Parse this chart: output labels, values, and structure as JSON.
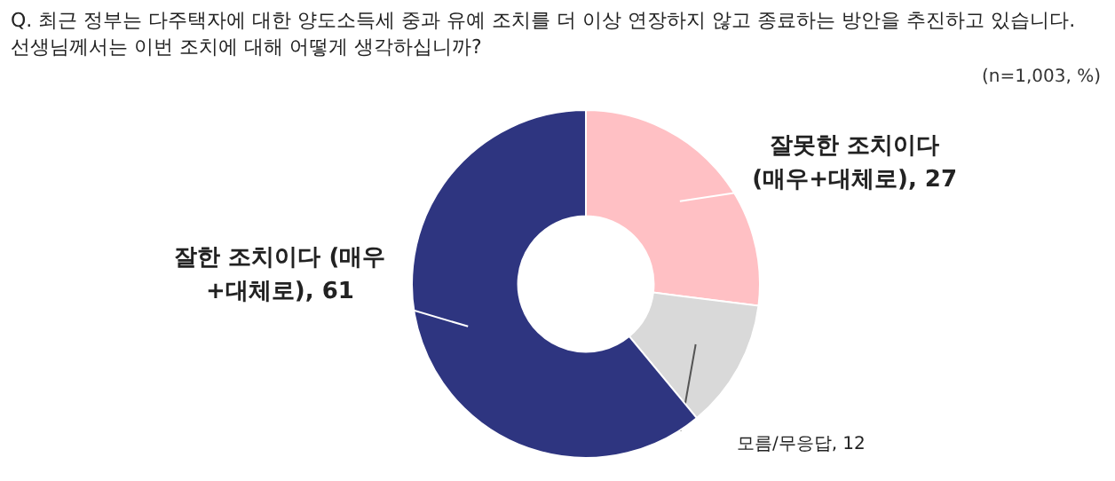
{
  "chart_data": {
    "type": "donut",
    "title": "Q. 최근 정부는 다주택자에 대한 양도소득세 중과 유예 조치를 더 이상 연장하지 않고 종료하는 방안을 추진하고 있습니다. 선생님께서는 이번 조치에 대해 어떻게 생각하십니까?",
    "annotations": [
      "(n=1,003, %)"
    ],
    "categories": [
      "잘못한 조치이다 (매우+대체로)",
      "모름/무응답",
      "잘한 조치이다 (매우+대체로)"
    ],
    "values": [
      27,
      12,
      61
    ],
    "colors": [
      "#ffc0c4",
      "#d9d9d9",
      "#2e3580"
    ],
    "value_labels": [
      ", 27",
      ", 12",
      ", 61"
    ]
  }
}
